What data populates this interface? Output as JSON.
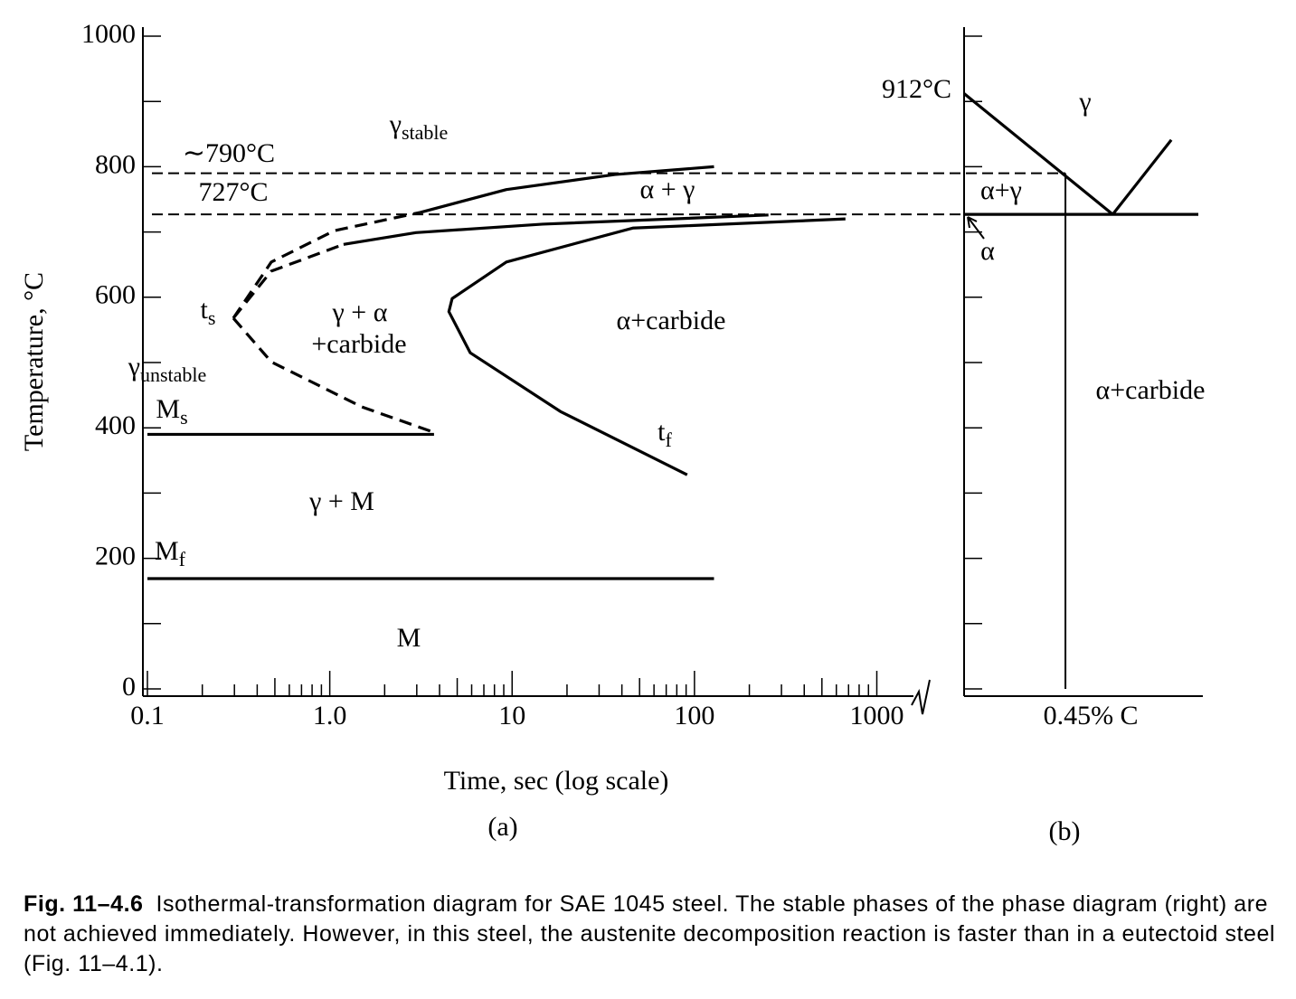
{
  "figure": {
    "label": "Fig. 11–4.6",
    "caption": "Isothermal-transformation diagram for SAE 1045 steel. The stable phases of the phase diagram (right) are not achieved immediately. However, in this steel, the austenite decomposition reaction is faster than in a eutectoid steel (Fig. 11–4.1)."
  },
  "chart_data": [
    {
      "type": "line",
      "panel": "(a)",
      "xlabel": "Time, sec (log scale)",
      "ylabel": "Temperature, °C",
      "xscale": "log",
      "xlim": [
        0.1,
        1500
      ],
      "ylim": [
        0,
        1000
      ],
      "xticks": [
        0.1,
        {
          "value": 1,
          "label": "1.0"
        },
        10,
        100,
        1000
      ],
      "yticks": [
        0,
        200,
        400,
        600,
        800,
        1000
      ],
      "tick_labels": true,
      "hlines": [
        {
          "value": 790,
          "label": "∼790°C",
          "dashed": true
        },
        {
          "value": 727,
          "label": "727°C",
          "dashed": true
        }
      ],
      "series": [
        {
          "x": [
            0.296,
            0.478,
            1.06,
            3.14
          ],
          "values": [
            568,
            654,
            702,
            730
          ],
          "dashed": true
        },
        {
          "x": [
            3.14,
            9.3,
            36.6,
            128
          ],
          "values": [
            730,
            765,
            788,
            800
          ],
          "dashed": false
        },
        {
          "x": [
            0.296,
            0.478,
            1.5,
            3.73
          ],
          "values": [
            568,
            501,
            432,
            393
          ],
          "dashed": true
        },
        {
          "x": [
            0.296,
            0.478,
            1.19
          ],
          "values": [
            568,
            640,
            681
          ],
          "dashed": true
        },
        {
          "x": [
            1.19,
            2.97,
            14.7,
            254.6
          ],
          "values": [
            681,
            699,
            712,
            726
          ],
          "dashed": false
        },
        {
          "x": [
            673,
            45.9,
            9.3,
            4.69,
            4.5,
            5.89,
            18.4,
            91.2
          ],
          "values": [
            720,
            706,
            654,
            598,
            578,
            515,
            425,
            328
          ],
          "dashed": false
        },
        {
          "x": [
            0.1,
            3.73
          ],
          "values": [
            390,
            390
          ],
          "dashed": false
        },
        {
          "x": [
            0.1,
            128
          ],
          "values": [
            169,
            169
          ],
          "dashed": false
        }
      ],
      "annotations": [
        {
          "text": "γ",
          "sub": "stable"
        },
        {
          "text": "α + γ"
        },
        {
          "text": "t",
          "sub": "s"
        },
        {
          "text": "γ + α"
        },
        {
          "text": "+carbide"
        },
        {
          "text": "α+carbide"
        },
        {
          "text": "γ",
          "sub": "unstable"
        },
        {
          "text": "M",
          "sub": "s"
        },
        {
          "text": "t",
          "sub": "f"
        },
        {
          "text": "γ + M"
        },
        {
          "text": "M",
          "sub": "f"
        },
        {
          "text": "M"
        }
      ]
    },
    {
      "type": "line",
      "panel": "(b)",
      "xlim": [
        0,
        1.04
      ],
      "ylim": [
        0,
        1000
      ],
      "xticks": [
        {
          "value": 0.45,
          "label": "0.45% C"
        }
      ],
      "yticks": [
        0,
        200,
        400,
        600,
        800,
        1000
      ],
      "tick_labels": false,
      "series": [
        {
          "x": [
            0,
            0.66
          ],
          "values": [
            912,
            727
          ],
          "dashed": false
        },
        {
          "x": [
            0.66,
            0.92
          ],
          "values": [
            727,
            841
          ],
          "dashed": false
        },
        {
          "x": [
            0,
            1.04
          ],
          "values": [
            727,
            727
          ],
          "dashed": false
        },
        {
          "x": [
            0.45,
            0.45
          ],
          "values": [
            790,
            0
          ],
          "dashed": false,
          "thin": true
        }
      ],
      "annotations": [
        {
          "text": "912°C"
        },
        {
          "text": "γ"
        },
        {
          "text": "α+γ"
        },
        {
          "text": "α"
        },
        {
          "text": "α+carbide"
        }
      ]
    }
  ]
}
